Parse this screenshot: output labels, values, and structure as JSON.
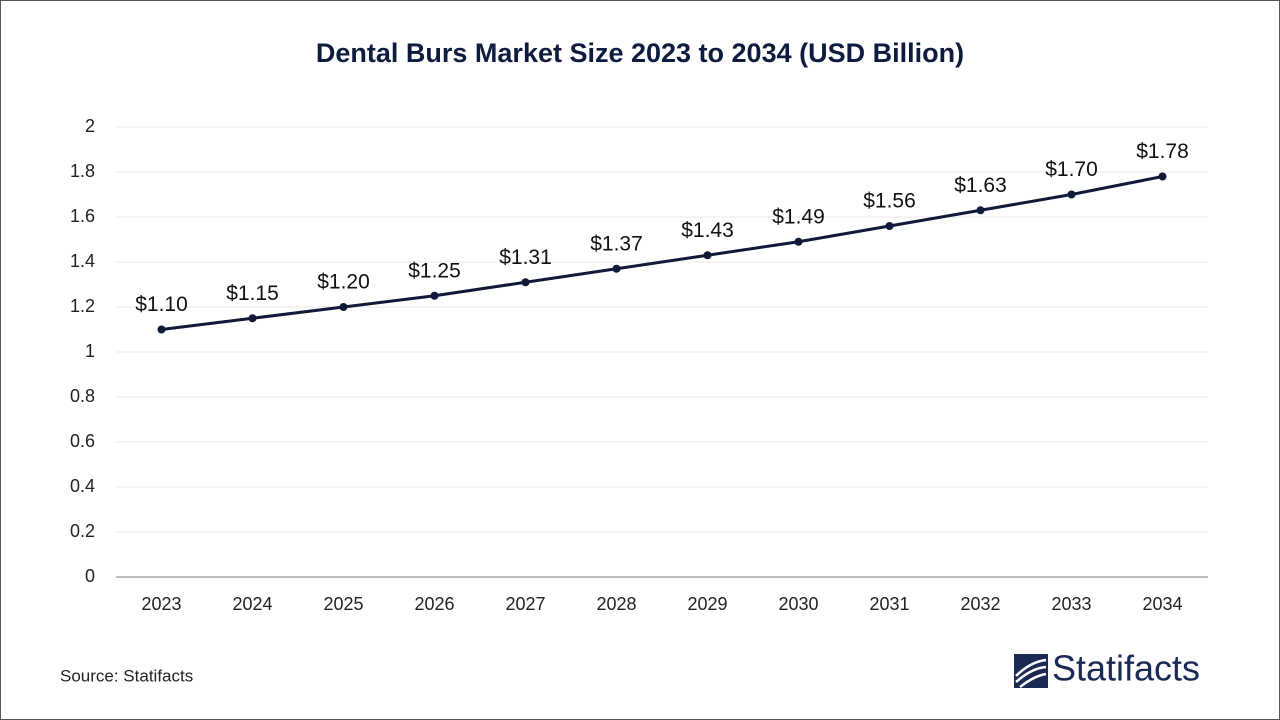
{
  "chart_data": {
    "type": "line",
    "title": "Dental Burs Market Size 2023 to 2034 (USD Billion)",
    "categories": [
      "2023",
      "2024",
      "2025",
      "2026",
      "2027",
      "2028",
      "2029",
      "2030",
      "2031",
      "2032",
      "2033",
      "2034"
    ],
    "values": [
      1.1,
      1.15,
      1.2,
      1.25,
      1.31,
      1.37,
      1.43,
      1.49,
      1.56,
      1.63,
      1.7,
      1.78
    ],
    "value_labels": [
      "$1.10",
      "$1.15",
      "$1.20",
      "$1.25",
      "$1.31",
      "$1.37",
      "$1.43",
      "$1.49",
      "$1.56",
      "$1.63",
      "$1.70",
      "$1.78"
    ],
    "color": "#0f1a3a",
    "ylim": [
      0,
      2
    ],
    "yticks": [
      0,
      0.2,
      0.4,
      0.6,
      0.8,
      1,
      1.2,
      1.4,
      1.6,
      1.8,
      2
    ],
    "grid": true,
    "source": "Source: Statifacts",
    "logo": "Statifacts"
  }
}
